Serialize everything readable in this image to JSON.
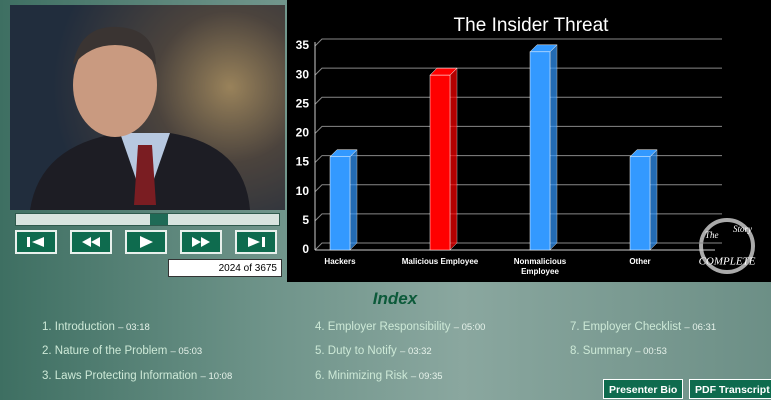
{
  "player": {
    "counter": "2024 of 3675"
  },
  "chart_data": {
    "type": "bar",
    "title": "The Insider Threat",
    "categories": [
      "Hackers",
      "Malicious Employee",
      "Nonmalicious Employee",
      "Other"
    ],
    "values": [
      16,
      30,
      34,
      16
    ],
    "colors": [
      "#3399ff",
      "#ff0000",
      "#3399ff",
      "#3399ff"
    ],
    "ylim": [
      0,
      35
    ],
    "yticks": [
      0,
      5,
      10,
      15,
      20,
      25,
      30,
      35
    ],
    "grid": true
  },
  "logo": {
    "left": "The",
    "right": "Story",
    "bottom": "COMPLETE"
  },
  "index": {
    "title": "Index",
    "items": [
      {
        "label": "1. Introduction",
        "time": "– 03:18"
      },
      {
        "label": "2. Nature of the Problem",
        "time": "– 05:03"
      },
      {
        "label": "3. Laws Protecting Information",
        "time": "– 10:08"
      },
      {
        "label": "4. Employer Responsibility",
        "time": "– 05:00"
      },
      {
        "label": "5. Duty to Notify",
        "time": "– 03:32"
      },
      {
        "label": "6. Minimizing Risk",
        "time": "– 09:35"
      },
      {
        "label": "7. Employer Checklist",
        "time": "– 06:31"
      },
      {
        "label": "8. Summary",
        "time": "– 00:53"
      }
    ]
  },
  "buttons": [
    "Presenter Bio",
    "PDF Transcript"
  ]
}
